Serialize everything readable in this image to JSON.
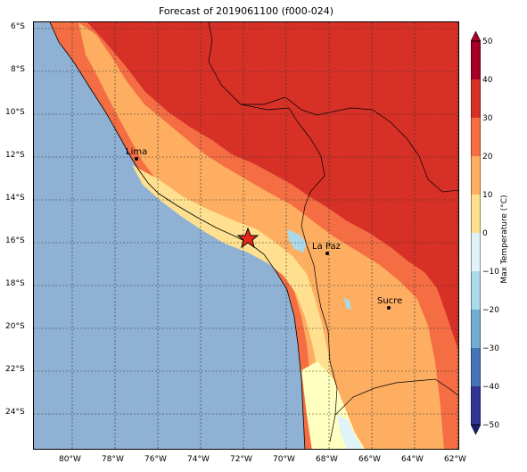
{
  "title": "Forecast of 2019061100 (f000-024)",
  "map": {
    "lat_labels": [
      "6°S",
      "8°S",
      "10°S",
      "12°S",
      "14°S",
      "16°S",
      "18°S",
      "20°S",
      "22°S",
      "24°S"
    ],
    "lon_labels": [
      "80°W",
      "78°W",
      "76°W",
      "74°W",
      "72°W",
      "70°W",
      "68°W",
      "66°W",
      "64°W",
      "62°W"
    ],
    "cities": [
      {
        "name": "Lima"
      },
      {
        "name": "La Paz"
      },
      {
        "name": "Sucre"
      }
    ],
    "marker": "star",
    "colors": {
      "ocean": "#8fb1d4",
      "dark_red": "#d73027",
      "red_orange": "#f46d43",
      "orange": "#fdae61",
      "pale": "#fee090",
      "cream": "#ffffbf",
      "light_blue": "#c5e3f0",
      "star": "#e8261b"
    }
  },
  "colorbar": {
    "label": "Max Temperature (°C)",
    "ticks": [
      "50",
      "40",
      "30",
      "20",
      "10",
      "0",
      "−10",
      "−20",
      "−30",
      "−40",
      "−50"
    ],
    "colors": [
      "#a50026",
      "#d73027",
      "#f46d43",
      "#fdae61",
      "#fee090",
      "#ffffbf",
      "#e0f3f8",
      "#abd9e9",
      "#74add1",
      "#4575b4",
      "#313695",
      "#1a1f6e"
    ]
  }
}
